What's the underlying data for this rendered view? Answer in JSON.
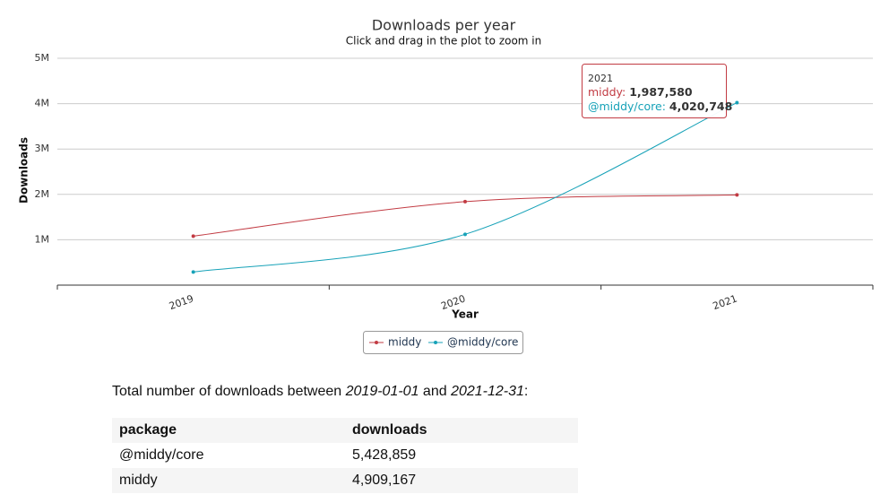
{
  "chart_data": {
    "type": "line",
    "title": "Downloads per year",
    "subtitle": "Click and drag in the plot to zoom in",
    "x_label": "Year",
    "y_label": "Downloads",
    "categories": [
      "2019",
      "2020",
      "2021"
    ],
    "series": [
      {
        "name": "middy",
        "color": "#c23b43",
        "values": [
          1080000,
          1840000,
          1987580
        ]
      },
      {
        "name": "@middy/core",
        "color": "#17a2b8",
        "values": [
          290000,
          1120000,
          4020748
        ]
      }
    ],
    "ylim": [
      0,
      5000000
    ],
    "yticks": [
      {
        "value": 1000000,
        "label": "1M"
      },
      {
        "value": 2000000,
        "label": "2M"
      },
      {
        "value": 3000000,
        "label": "3M"
      },
      {
        "value": 4000000,
        "label": "4M"
      },
      {
        "value": 5000000,
        "label": "5M"
      }
    ],
    "grid": true
  },
  "tooltip": {
    "title": "2021",
    "rows": [
      {
        "label": "middy:",
        "value": "1,987,580"
      },
      {
        "label": "@middy/core:",
        "value": "4,020,748"
      }
    ]
  },
  "summary": {
    "prefix": "Total number of downloads between",
    "start": "2019-01-01",
    "middle": "and",
    "end": "2021-12-31",
    "suffix": ":"
  },
  "table": {
    "header": [
      "package",
      "downloads"
    ],
    "rows": [
      [
        "@middy/core",
        "5,428,859"
      ],
      [
        "middy",
        "4,909,167"
      ]
    ]
  }
}
